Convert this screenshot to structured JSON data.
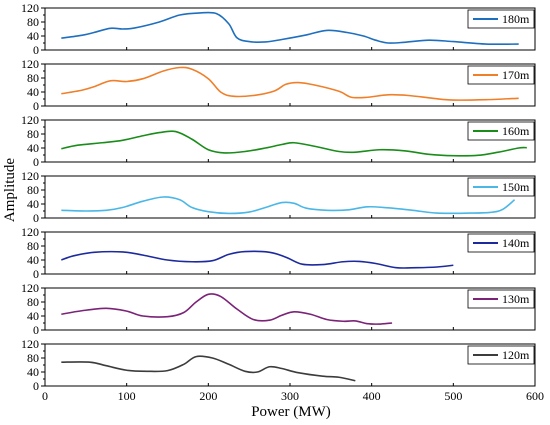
{
  "chart_data": {
    "type": "line",
    "xlabel": "Power (MW)",
    "ylabel": "Amplitude",
    "xlim": [
      0,
      600
    ],
    "ylim": [
      0,
      120
    ],
    "x_ticks": [
      "0",
      "100",
      "200",
      "300",
      "400",
      "500",
      "600"
    ],
    "y_ticks": [
      "0",
      "40",
      "80",
      "120"
    ],
    "y_minor_ticks": [
      "20",
      "60",
      "100"
    ],
    "grid": false,
    "legend_placement": "top-right",
    "series": [
      {
        "name": "180m",
        "color": "#1f6fbf",
        "points": [
          [
            20,
            34
          ],
          [
            45,
            42
          ],
          [
            60,
            50
          ],
          [
            80,
            62
          ],
          [
            95,
            60
          ],
          [
            110,
            63
          ],
          [
            140,
            80
          ],
          [
            165,
            100
          ],
          [
            190,
            106
          ],
          [
            210,
            104
          ],
          [
            225,
            75
          ],
          [
            235,
            35
          ],
          [
            250,
            24
          ],
          [
            270,
            23
          ],
          [
            290,
            30
          ],
          [
            320,
            43
          ],
          [
            345,
            56
          ],
          [
            370,
            50
          ],
          [
            390,
            40
          ],
          [
            405,
            28
          ],
          [
            420,
            20
          ],
          [
            440,
            22
          ],
          [
            470,
            28
          ],
          [
            500,
            24
          ],
          [
            540,
            17
          ],
          [
            580,
            17
          ]
        ]
      },
      {
        "name": "170m",
        "color": "#f07f2a",
        "points": [
          [
            20,
            35
          ],
          [
            45,
            45
          ],
          [
            60,
            55
          ],
          [
            80,
            72
          ],
          [
            100,
            70
          ],
          [
            120,
            78
          ],
          [
            145,
            100
          ],
          [
            165,
            110
          ],
          [
            180,
            105
          ],
          [
            200,
            78
          ],
          [
            215,
            40
          ],
          [
            230,
            28
          ],
          [
            255,
            30
          ],
          [
            280,
            42
          ],
          [
            295,
            62
          ],
          [
            310,
            67
          ],
          [
            330,
            60
          ],
          [
            360,
            42
          ],
          [
            375,
            25
          ],
          [
            395,
            25
          ],
          [
            420,
            32
          ],
          [
            445,
            30
          ],
          [
            475,
            22
          ],
          [
            500,
            17
          ],
          [
            540,
            18
          ],
          [
            580,
            22
          ]
        ]
      },
      {
        "name": "160m",
        "color": "#1a8c1a",
        "points": [
          [
            20,
            38
          ],
          [
            40,
            48
          ],
          [
            70,
            55
          ],
          [
            95,
            62
          ],
          [
            120,
            75
          ],
          [
            140,
            84
          ],
          [
            160,
            87
          ],
          [
            180,
            65
          ],
          [
            200,
            35
          ],
          [
            220,
            26
          ],
          [
            245,
            30
          ],
          [
            270,
            40
          ],
          [
            290,
            50
          ],
          [
            305,
            55
          ],
          [
            330,
            45
          ],
          [
            360,
            30
          ],
          [
            380,
            28
          ],
          [
            410,
            35
          ],
          [
            440,
            32
          ],
          [
            470,
            22
          ],
          [
            500,
            18
          ],
          [
            530,
            19
          ],
          [
            555,
            28
          ],
          [
            580,
            40
          ],
          [
            590,
            41
          ]
        ]
      },
      {
        "name": "150m",
        "color": "#4ab7e6",
        "points": [
          [
            20,
            22
          ],
          [
            50,
            20
          ],
          [
            75,
            22
          ],
          [
            95,
            30
          ],
          [
            120,
            48
          ],
          [
            145,
            60
          ],
          [
            165,
            52
          ],
          [
            180,
            30
          ],
          [
            200,
            18
          ],
          [
            225,
            13
          ],
          [
            250,
            17
          ],
          [
            270,
            30
          ],
          [
            290,
            44
          ],
          [
            305,
            42
          ],
          [
            320,
            28
          ],
          [
            345,
            22
          ],
          [
            370,
            23
          ],
          [
            395,
            32
          ],
          [
            420,
            29
          ],
          [
            450,
            22
          ],
          [
            480,
            14
          ],
          [
            520,
            14
          ],
          [
            545,
            16
          ],
          [
            560,
            24
          ],
          [
            575,
            52
          ]
        ]
      },
      {
        "name": "140m",
        "color": "#1c2a9e",
        "points": [
          [
            20,
            40
          ],
          [
            35,
            52
          ],
          [
            60,
            62
          ],
          [
            95,
            63
          ],
          [
            120,
            54
          ],
          [
            150,
            40
          ],
          [
            180,
            35
          ],
          [
            205,
            38
          ],
          [
            225,
            56
          ],
          [
            245,
            64
          ],
          [
            275,
            62
          ],
          [
            295,
            48
          ],
          [
            315,
            28
          ],
          [
            340,
            27
          ],
          [
            365,
            35
          ],
          [
            385,
            36
          ],
          [
            405,
            30
          ],
          [
            430,
            18
          ],
          [
            455,
            18
          ],
          [
            480,
            20
          ],
          [
            500,
            25
          ]
        ]
      },
      {
        "name": "130m",
        "color": "#7b2377",
        "points": [
          [
            20,
            45
          ],
          [
            45,
            55
          ],
          [
            75,
            62
          ],
          [
            100,
            54
          ],
          [
            120,
            40
          ],
          [
            150,
            38
          ],
          [
            170,
            50
          ],
          [
            185,
            80
          ],
          [
            200,
            102
          ],
          [
            215,
            96
          ],
          [
            235,
            60
          ],
          [
            255,
            30
          ],
          [
            275,
            28
          ],
          [
            290,
            42
          ],
          [
            305,
            52
          ],
          [
            325,
            45
          ],
          [
            345,
            30
          ],
          [
            365,
            25
          ],
          [
            380,
            26
          ],
          [
            395,
            18
          ],
          [
            410,
            17
          ],
          [
            425,
            20
          ]
        ]
      },
      {
        "name": "120m",
        "color": "#3c3c3c",
        "points": [
          [
            20,
            68
          ],
          [
            55,
            68
          ],
          [
            75,
            58
          ],
          [
            100,
            45
          ],
          [
            125,
            42
          ],
          [
            150,
            44
          ],
          [
            170,
            62
          ],
          [
            185,
            84
          ],
          [
            205,
            80
          ],
          [
            225,
            62
          ],
          [
            245,
            42
          ],
          [
            260,
            40
          ],
          [
            275,
            55
          ],
          [
            290,
            50
          ],
          [
            310,
            38
          ],
          [
            340,
            28
          ],
          [
            360,
            25
          ],
          [
            380,
            15
          ]
        ]
      }
    ]
  }
}
